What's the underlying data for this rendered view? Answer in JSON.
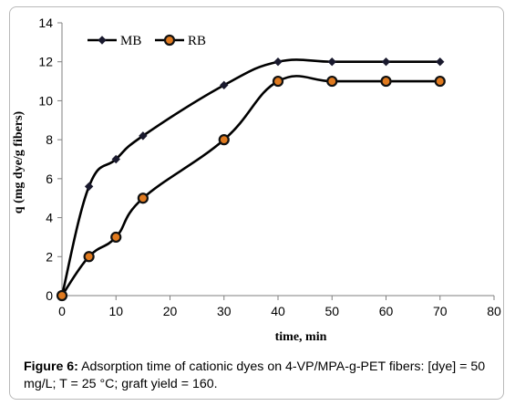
{
  "chart_data": {
    "type": "line",
    "xlabel": "time, min",
    "ylabel": "q (mg dye/g fibers)",
    "xlim": [
      0,
      80
    ],
    "ylim": [
      0,
      14
    ],
    "xticks": [
      0,
      10,
      20,
      30,
      40,
      50,
      60,
      70,
      80
    ],
    "yticks": [
      0,
      2,
      4,
      6,
      8,
      10,
      12,
      14
    ],
    "grid": false,
    "legend_position": "top-left",
    "series": [
      {
        "name": "MB",
        "marker": "diamond",
        "color": "#000000",
        "x": [
          0,
          5,
          10,
          15,
          30,
          40,
          50,
          60,
          70
        ],
        "y": [
          0,
          5.6,
          7.0,
          8.2,
          10.8,
          12.0,
          12.0,
          12.0,
          12.0
        ]
      },
      {
        "name": "RB",
        "marker": "circle",
        "color": "#000000",
        "marker_fill": "#e07a1f",
        "x": [
          0,
          5,
          10,
          15,
          30,
          40,
          50,
          60,
          70
        ],
        "y": [
          0,
          2.0,
          3.0,
          5.0,
          8.0,
          11.0,
          11.0,
          11.0,
          11.0
        ]
      }
    ]
  },
  "caption": {
    "label": "Figure 6:",
    "text": " Adsorption time of cationic dyes on 4-VP/MPA-g-PET fibers: [dye] = 50 mg/L; T = 25 °C; graft yield = 160."
  }
}
